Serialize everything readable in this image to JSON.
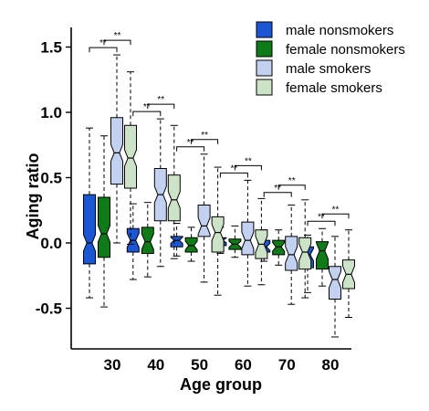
{
  "chart_data": {
    "type": "boxplot",
    "xlabel": "Age group",
    "ylabel": "Aging ratio",
    "categories": [
      "30",
      "40",
      "50",
      "60",
      "70",
      "80"
    ],
    "ylim": [
      -0.8,
      1.6
    ],
    "yticks": [
      "-0.5",
      "0.0",
      "0.5",
      "1.0",
      "1.5"
    ],
    "grid": false,
    "legend_position": "top-right",
    "significance_label": "**",
    "series": [
      {
        "name": "male nonsmokers",
        "color": "#1c57d3",
        "boxes": [
          {
            "min": -0.42,
            "q1": -0.16,
            "median": 0.0,
            "q3": 0.37,
            "max": 0.88
          },
          {
            "min": -0.28,
            "q1": -0.07,
            "median": 0.02,
            "q3": 0.11,
            "max": 0.3
          },
          {
            "min": -0.1,
            "q1": -0.03,
            "median": 0.02,
            "q3": 0.05,
            "max": 0.15
          },
          {
            "min": -0.08,
            "q1": -0.02,
            "median": 0.02,
            "q3": 0.04,
            "max": 0.12
          },
          {
            "min": -0.14,
            "q1": -0.07,
            "median": -0.03,
            "q3": 0.02,
            "max": 0.1
          },
          {
            "min": -0.38,
            "q1": -0.19,
            "median": -0.09,
            "q3": -0.03,
            "max": 0.06
          }
        ]
      },
      {
        "name": "female nonsmokers",
        "color": "#0f7a18",
        "boxes": [
          {
            "min": -0.49,
            "q1": -0.11,
            "median": 0.07,
            "q3": 0.35,
            "max": 0.82
          },
          {
            "min": -0.26,
            "q1": -0.08,
            "median": 0.01,
            "q3": 0.12,
            "max": 0.31
          },
          {
            "min": -0.14,
            "q1": -0.07,
            "median": -0.02,
            "q3": 0.04,
            "max": 0.12
          },
          {
            "min": -0.11,
            "q1": -0.05,
            "median": -0.01,
            "q3": 0.03,
            "max": 0.13
          },
          {
            "min": -0.17,
            "q1": -0.09,
            "median": -0.03,
            "q3": 0.02,
            "max": 0.1
          },
          {
            "min": -0.33,
            "q1": -0.2,
            "median": -0.06,
            "q3": 0.01,
            "max": 0.11
          }
        ]
      },
      {
        "name": "male smokers",
        "color": "#c3d1f1",
        "boxes": [
          {
            "min": 0.0,
            "q1": 0.45,
            "median": 0.69,
            "q3": 0.96,
            "max": 1.44
          },
          {
            "min": -0.18,
            "q1": 0.17,
            "median": 0.37,
            "q3": 0.57,
            "max": 0.95
          },
          {
            "min": -0.3,
            "q1": 0.05,
            "median": 0.13,
            "q3": 0.29,
            "max": 0.68
          },
          {
            "min": -0.33,
            "q1": -0.09,
            "median": 0.02,
            "q3": 0.16,
            "max": 0.48
          },
          {
            "min": -0.47,
            "q1": -0.21,
            "median": -0.09,
            "q3": 0.05,
            "max": 0.29
          },
          {
            "min": -0.72,
            "q1": -0.43,
            "median": -0.28,
            "q3": -0.18,
            "max": 0.05
          }
        ]
      },
      {
        "name": "female smokers",
        "color": "#cde3c8",
        "boxes": [
          {
            "min": -0.01,
            "q1": 0.42,
            "median": 0.65,
            "q3": 0.9,
            "max": 1.31
          },
          {
            "min": -0.12,
            "q1": 0.17,
            "median": 0.33,
            "q3": 0.52,
            "max": 0.9
          },
          {
            "min": -0.4,
            "q1": -0.07,
            "median": 0.08,
            "q3": 0.2,
            "max": 0.58
          },
          {
            "min": -0.32,
            "q1": -0.12,
            "median": -0.01,
            "q3": 0.1,
            "max": 0.34
          },
          {
            "min": -0.42,
            "q1": -0.2,
            "median": -0.07,
            "q3": 0.04,
            "max": 0.33
          },
          {
            "min": -0.57,
            "q1": -0.35,
            "median": -0.24,
            "q3": -0.13,
            "max": 0.1
          }
        ]
      }
    ]
  }
}
